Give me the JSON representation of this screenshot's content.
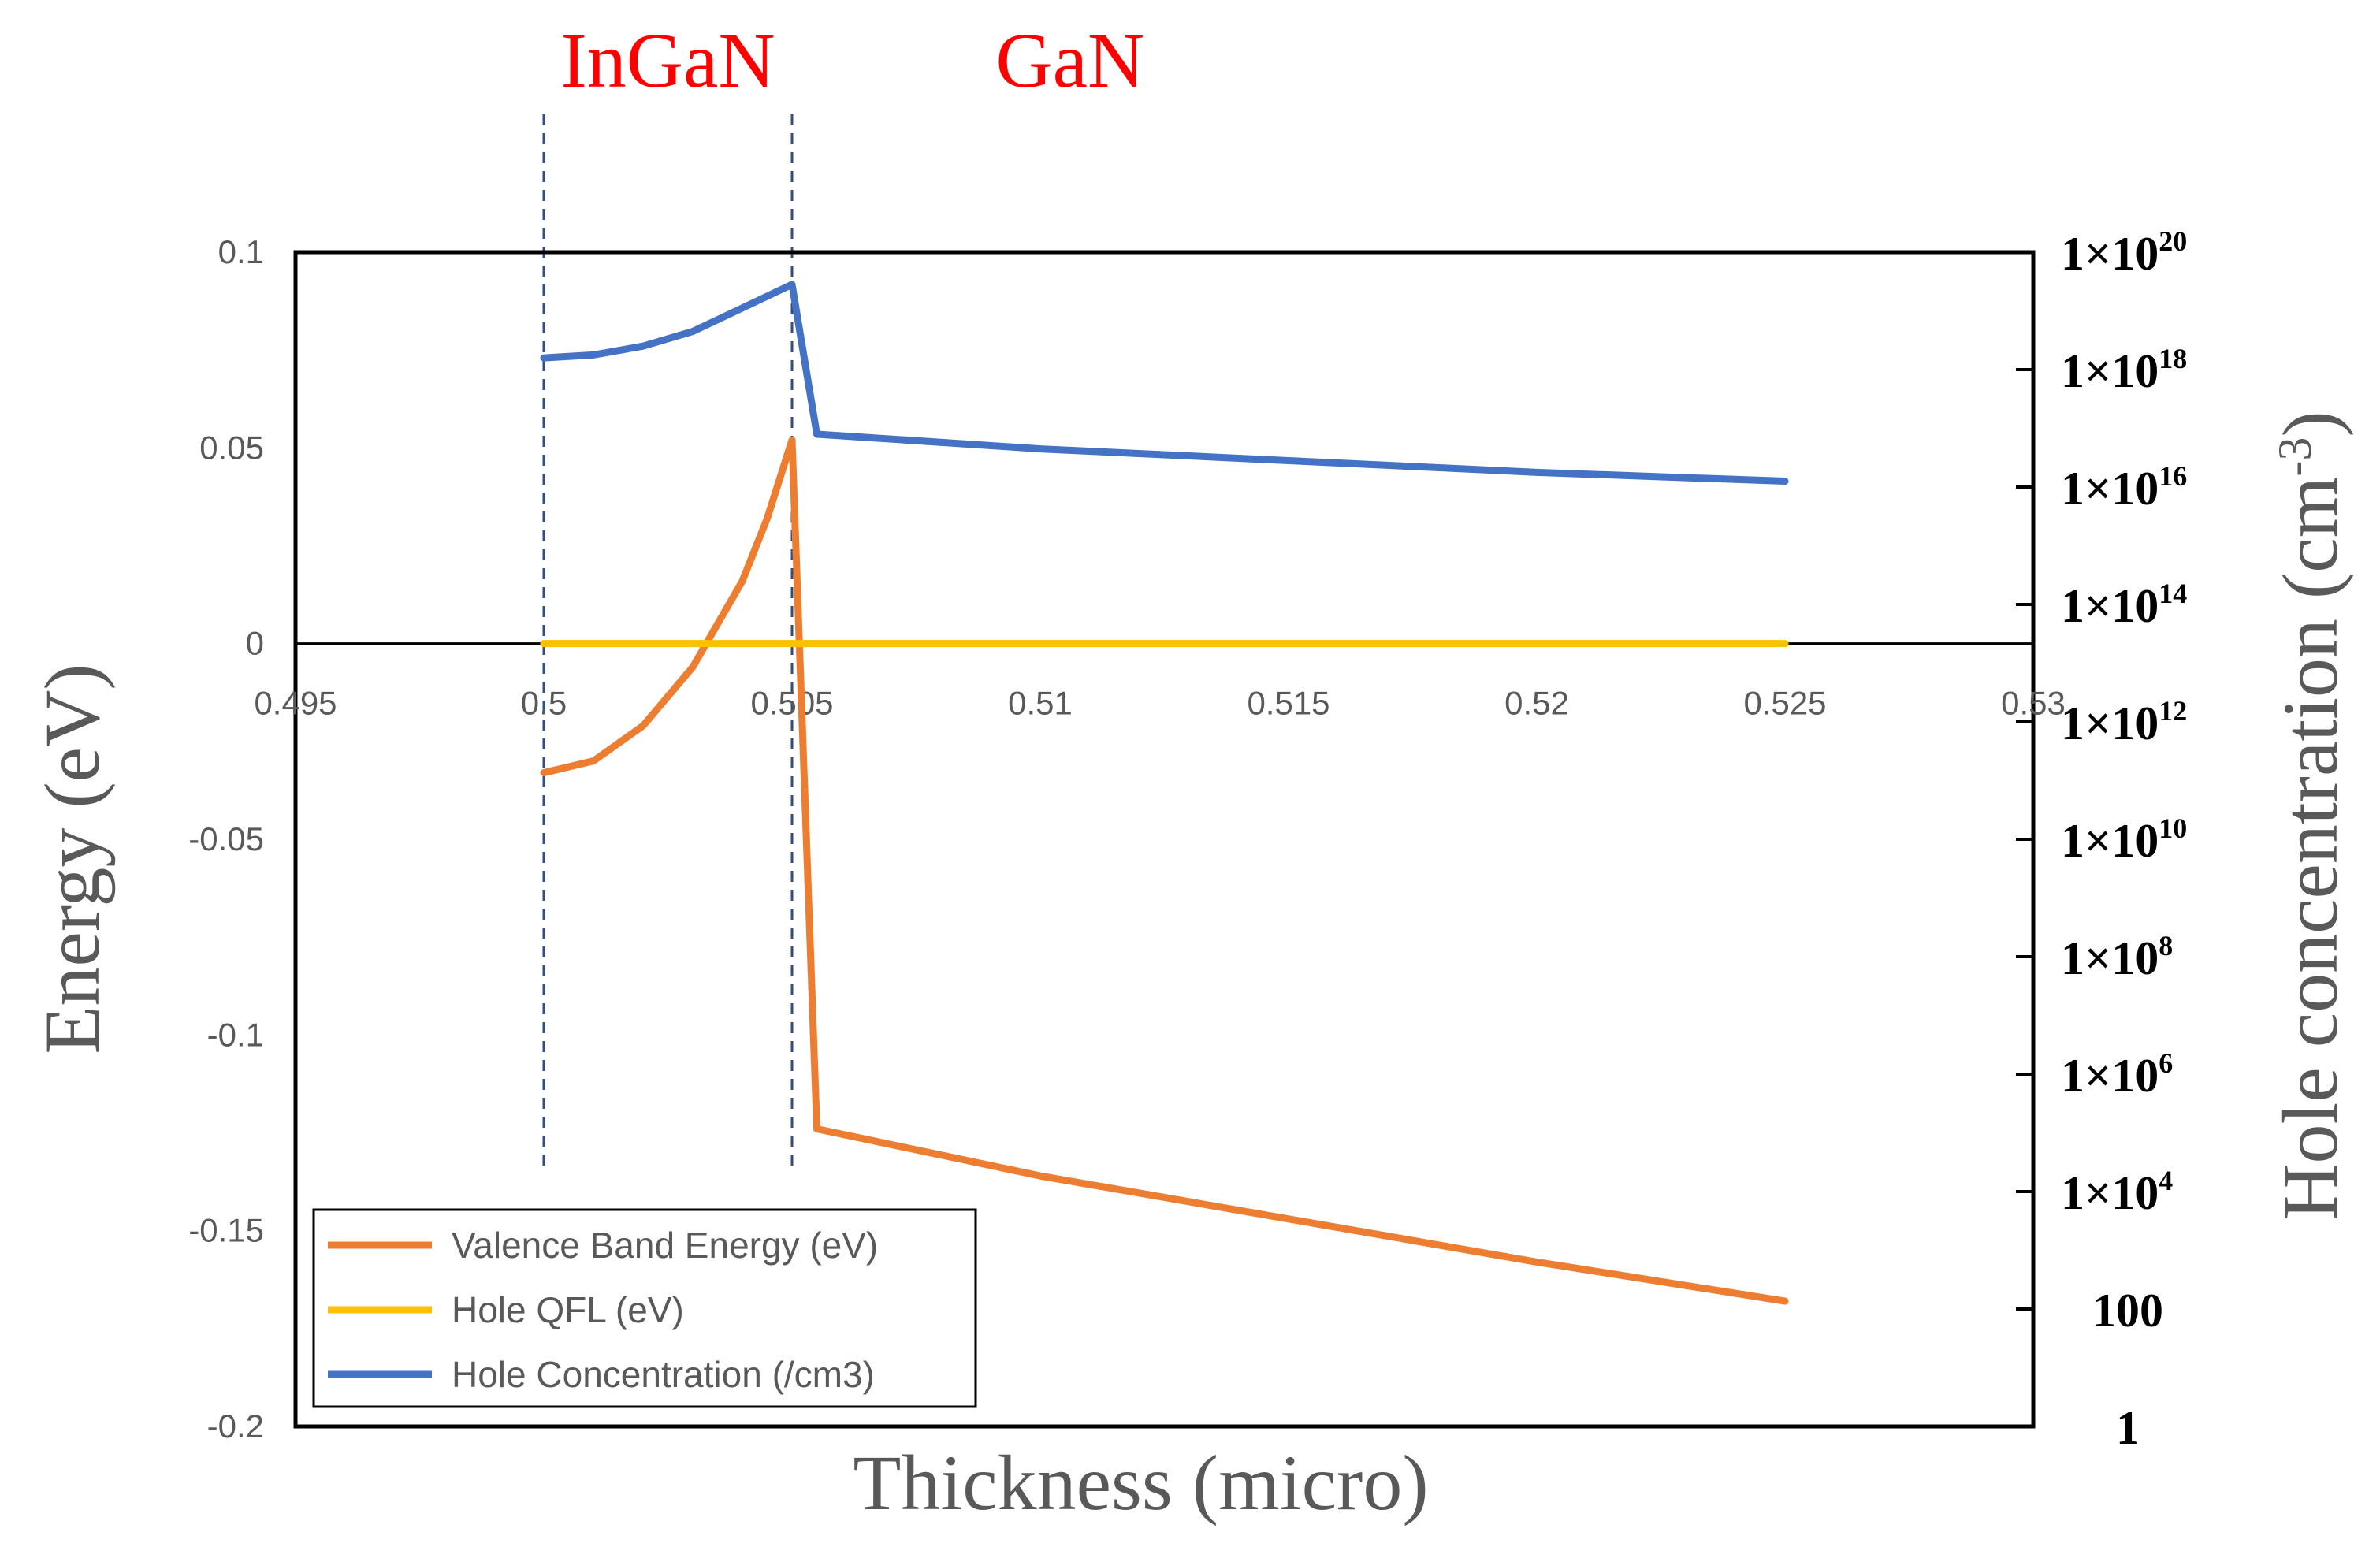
{
  "chart_data": {
    "type": "line",
    "xlabel": "Thickness (micro)",
    "ylabel_left": "Energy (eV)",
    "ylabel_right": "Hole concentration (cm",
    "ylabel_right_sup": "-3",
    "ylabel_right_end": ")",
    "xlim": [
      0.495,
      0.53
    ],
    "ylim_left": [
      -0.2,
      0.1
    ],
    "ylim_right_log10": [
      0,
      20
    ],
    "x_ticks": [
      "0.495",
      "0.5",
      "0.505",
      "0.51",
      "0.515",
      "0.52",
      "0.525",
      "0.53"
    ],
    "y_left_ticks": [
      "0.1",
      "0.05",
      "0",
      "-0.05",
      "-0.1",
      "-0.15",
      "-0.2"
    ],
    "y_right_ticks": [
      {
        "base": "1×10",
        "exp": "20",
        "log": 20
      },
      {
        "base": "1×10",
        "exp": "18",
        "log": 18
      },
      {
        "base": "1×10",
        "exp": "16",
        "log": 16
      },
      {
        "base": "1×10",
        "exp": "14",
        "log": 14
      },
      {
        "base": "1×10",
        "exp": "12",
        "log": 12
      },
      {
        "base": "1×10",
        "exp": "10",
        "log": 10
      },
      {
        "base": "1×10",
        "exp": "8",
        "log": 8
      },
      {
        "base": "1×10",
        "exp": "6",
        "log": 6
      },
      {
        "base": "1×10",
        "exp": "4",
        "log": 4
      },
      {
        "base": "100",
        "exp": "",
        "log": 2
      },
      {
        "base": "1",
        "exp": "",
        "log": 0
      }
    ],
    "regions": [
      {
        "label": "InGaN",
        "from": 0.5,
        "to": 0.505,
        "color": "#ff0000"
      },
      {
        "label": "GaN",
        "from": 0.505,
        "to": 0.525,
        "color": "#ff0000"
      }
    ],
    "boundaries": [
      0.5,
      0.505
    ],
    "series": [
      {
        "name": "Valence Band Energy (eV)",
        "axis": "left",
        "color": "#ed7d31",
        "x": [
          0.5,
          0.501,
          0.502,
          0.503,
          0.504,
          0.5045,
          0.505,
          0.5055,
          0.51,
          0.515,
          0.52,
          0.525
        ],
        "y": [
          -0.033,
          -0.03,
          -0.021,
          -0.006,
          0.016,
          0.032,
          0.052,
          -0.124,
          -0.136,
          -0.147,
          -0.158,
          -0.168
        ]
      },
      {
        "name": "Hole QFL (eV)",
        "axis": "left",
        "color": "#ffc000",
        "x": [
          0.5,
          0.525
        ],
        "y": [
          0.0,
          0.0
        ]
      },
      {
        "name": "Hole Concentration (/cm3)",
        "axis": "right",
        "color": "#4472c4",
        "x": [
          0.5,
          0.501,
          0.502,
          0.503,
          0.504,
          0.505,
          0.5055,
          0.51,
          0.515,
          0.52,
          0.525
        ],
        "y_log10": [
          18.2,
          18.25,
          18.4,
          18.65,
          19.05,
          19.45,
          16.9,
          16.65,
          16.45,
          16.25,
          16.1
        ]
      }
    ],
    "legend": {
      "position": "bottom-left",
      "entries": [
        "Valence Band Energy (eV)",
        "Hole QFL (eV)",
        "Hole Concentration (/cm3)"
      ]
    }
  }
}
